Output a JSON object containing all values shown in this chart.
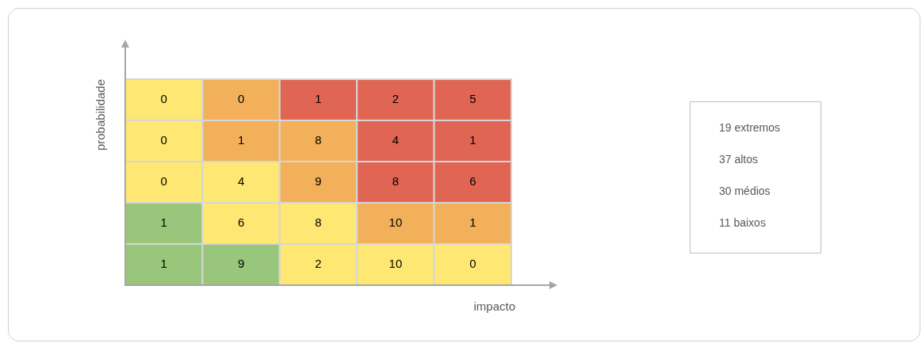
{
  "chart_data": {
    "type": "heatmap",
    "xlabel": "impacto",
    "ylabel": "probabilidade",
    "categories": [
      null,
      null,
      null,
      null,
      null
    ],
    "y_categories": [
      null,
      null,
      null,
      null,
      null
    ],
    "cells": [
      [
        0,
        0,
        1,
        2,
        5
      ],
      [
        0,
        1,
        8,
        4,
        1
      ],
      [
        0,
        4,
        9,
        8,
        6
      ],
      [
        1,
        6,
        8,
        10,
        1
      ],
      [
        1,
        9,
        2,
        10,
        0
      ]
    ],
    "colors": [
      [
        "#fee873",
        "#f2b05a",
        "#e06552",
        "#e06552",
        "#e06552"
      ],
      [
        "#fee873",
        "#f2b05a",
        "#f2b05a",
        "#e06552",
        "#e06552"
      ],
      [
        "#fee873",
        "#fee873",
        "#f2b05a",
        "#e06552",
        "#e06552"
      ],
      [
        "#98c67a",
        "#fee873",
        "#fee873",
        "#f2b05a",
        "#f2b05a"
      ],
      [
        "#98c67a",
        "#98c67a",
        "#fee873",
        "#fee873",
        "#fee873"
      ]
    ],
    "data_labels": true,
    "annotations": [
      "19 extremos",
      "37 altos",
      "30 médios",
      "11 baixos"
    ]
  }
}
